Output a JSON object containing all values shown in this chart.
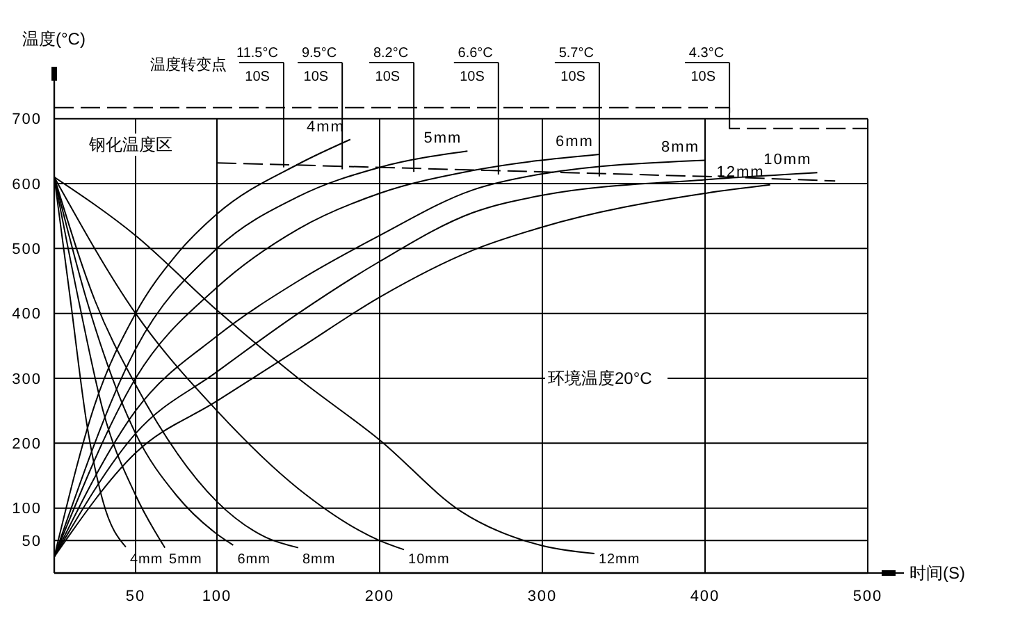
{
  "chart_data": {
    "type": "line",
    "xlabel": "时间(S)",
    "ylabel": "温度(°C)",
    "xlim": [
      0,
      500
    ],
    "ylim": [
      0,
      780
    ],
    "xticks": [
      50,
      100,
      200,
      300,
      400,
      500
    ],
    "yticks": [
      50,
      100,
      200,
      300,
      400,
      500,
      600,
      700
    ],
    "grid": true,
    "series": [
      {
        "name": "4mm",
        "color": "#000000",
        "x": [
          0,
          25,
          50,
          75,
          100,
          150,
          182
        ],
        "values": [
          25,
          260,
          400,
          490,
          553,
          630,
          668
        ]
      },
      {
        "name": "5mm",
        "color": "#000000",
        "x": [
          0,
          50,
          100,
          150,
          200,
          254
        ],
        "values": [
          25,
          345,
          500,
          580,
          625,
          650
        ]
      },
      {
        "name": "6mm",
        "color": "#000000",
        "x": [
          0,
          50,
          100,
          150,
          200,
          257,
          335
        ],
        "values": [
          25,
          300,
          440,
          530,
          585,
          620,
          645
        ]
      },
      {
        "name": "8mm",
        "color": "#000000",
        "x": [
          0,
          50,
          100,
          150,
          200,
          257,
          300,
          400
        ],
        "values": [
          25,
          250,
          365,
          450,
          520,
          590,
          615,
          636
        ]
      },
      {
        "name": "10mm",
        "color": "#000000",
        "x": [
          0,
          50,
          100,
          150,
          200,
          257,
          300,
          400,
          469
        ],
        "values": [
          25,
          215,
          310,
          400,
          480,
          555,
          582,
          606,
          617
        ]
      },
      {
        "name": "12mm",
        "color": "#000000",
        "x": [
          0,
          50,
          100,
          150,
          200,
          257,
          300,
          400,
          440
        ],
        "values": [
          25,
          185,
          265,
          345,
          425,
          497,
          533,
          585,
          598
        ]
      },
      {
        "name": "4mm",
        "color": "#000000",
        "x": [
          0,
          10,
          20,
          30,
          44
        ],
        "values": [
          610,
          420,
          230,
          110,
          40
        ]
      },
      {
        "name": "5mm",
        "color": "#000000",
        "x": [
          0,
          15,
          30,
          50,
          68
        ],
        "values": [
          610,
          420,
          250,
          120,
          39
        ]
      },
      {
        "name": "6mm",
        "color": "#000000",
        "x": [
          0,
          20,
          50,
          75,
          100,
          110
        ],
        "values": [
          610,
          420,
          215,
          120,
          60,
          43
        ]
      },
      {
        "name": "8mm",
        "color": "#000000",
        "x": [
          0,
          25,
          50,
          100,
          130,
          150
        ],
        "values": [
          610,
          420,
          290,
          110,
          55,
          39
        ]
      },
      {
        "name": "10mm",
        "color": "#000000",
        "x": [
          0,
          50,
          100,
          150,
          200,
          215
        ],
        "values": [
          610,
          400,
          250,
          130,
          50,
          36
        ]
      },
      {
        "name": "12mm",
        "color": "#000000",
        "x": [
          0,
          50,
          100,
          150,
          200,
          250,
          300,
          332
        ],
        "values": [
          610,
          520,
          405,
          300,
          205,
          95,
          42,
          30
        ]
      },
      {
        "color": "#000000",
        "line_style": "dashed",
        "x": [
          100,
          414,
          480
        ],
        "values": [
          632,
          610,
          604
        ]
      },
      {
        "color": "#000000",
        "line_style": "dashed",
        "x": [
          0,
          415,
          415,
          500
        ],
        "values": [
          717,
          717,
          685,
          685
        ]
      }
    ],
    "annotations": [
      "温度转变点",
      "钢化温度区",
      "环境温度20°C",
      "10S",
      "10S",
      "10S",
      "10S",
      "10S",
      "10S",
      {
        "text": "11.5°C",
        "x": 141,
        "y": 625
      },
      {
        "text": "9.5°C",
        "x": 177,
        "y": 622
      },
      {
        "text": "8.2°C",
        "x": 221,
        "y": 618
      },
      {
        "text": "6.6°C",
        "x": 273,
        "y": 614
      },
      {
        "text": "5.7°C",
        "x": 335,
        "y": 611
      },
      {
        "text": "4.3°C",
        "x": 415,
        "y": 685
      }
    ]
  }
}
